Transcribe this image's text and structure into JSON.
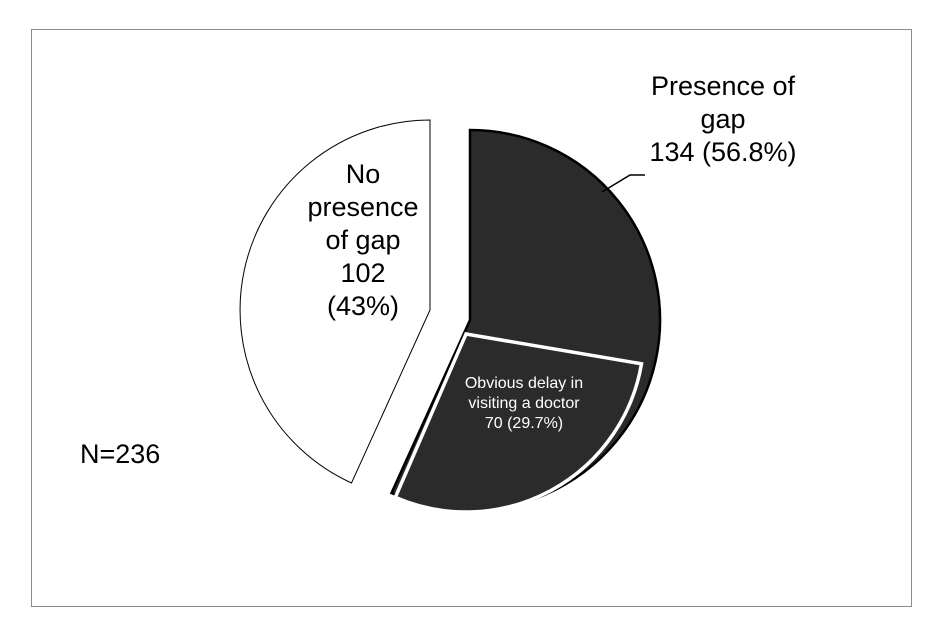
{
  "chart_data": {
    "type": "pie",
    "total_label": "N=236",
    "slices": [
      {
        "lines": [
          "Presence of",
          "gap",
          "134 (56.8%)"
        ],
        "value": 134,
        "percent": 56.8,
        "color": "#2b2b2b"
      },
      {
        "lines": [
          "No",
          "presence",
          "of gap",
          "102",
          "(43%)"
        ],
        "value": 102,
        "percent": 43,
        "color": "#ffffff"
      }
    ],
    "sub_slice": {
      "lines": [
        "Obvious delay in",
        "visiting a doctor",
        "70 (29.7%)"
      ],
      "value": 70,
      "percent": 29.7,
      "color": "#2b2b2b",
      "parent": "Presence of gap"
    }
  }
}
